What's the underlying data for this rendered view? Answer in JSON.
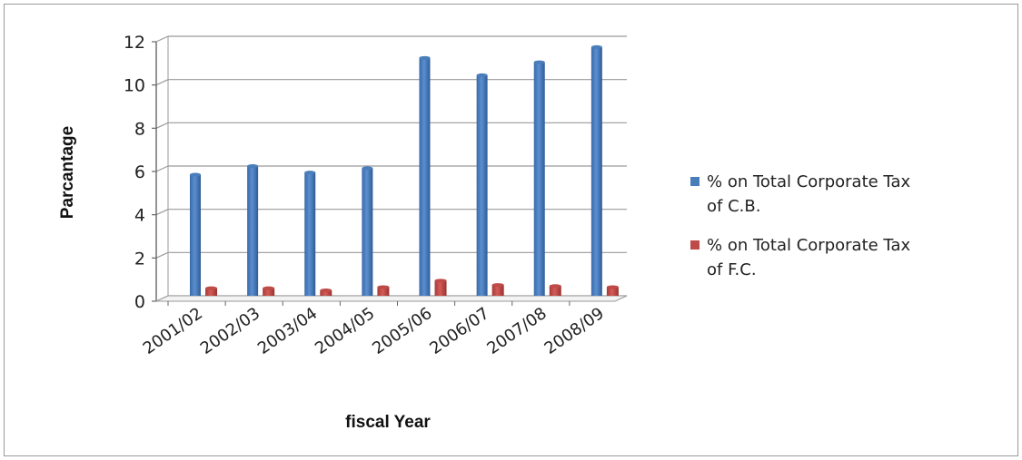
{
  "chart_data": {
    "type": "bar",
    "title": "",
    "xlabel": "fiscal Year",
    "ylabel": "Parcantage",
    "ylim": [
      0,
      12
    ],
    "yticks": [
      0,
      2,
      4,
      6,
      8,
      10,
      12
    ],
    "grid": true,
    "legend_position": "right",
    "categories": [
      "2001/02",
      "2002/03",
      "2003/04",
      "2004/05",
      "2005/06",
      "2006/07",
      "2007/08",
      "2008/09"
    ],
    "series": [
      {
        "name": "% on Total Corporate Tax of C.B.",
        "legend_lines": [
          "% on Total Corporate Tax",
          "of C.B."
        ],
        "color": "#4a7ebb",
        "values": [
          5.6,
          6.0,
          5.7,
          5.9,
          11.0,
          10.2,
          10.8,
          11.5
        ]
      },
      {
        "name": "% on Total Corporate Tax of F.C.",
        "legend_lines": [
          "% on Total Corporate Tax",
          "of F.C."
        ],
        "color": "#be4b48",
        "values": [
          0.35,
          0.35,
          0.25,
          0.4,
          0.7,
          0.5,
          0.45,
          0.4
        ]
      }
    ]
  }
}
